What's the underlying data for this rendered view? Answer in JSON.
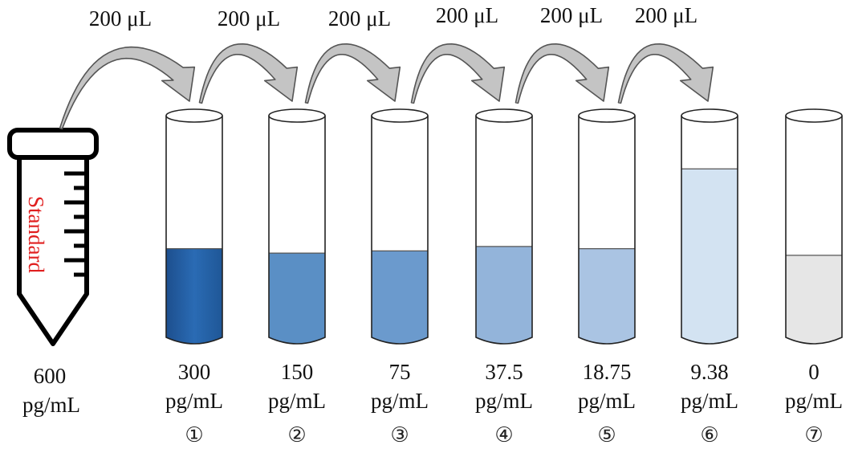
{
  "stock": {
    "tube_label": "Standard",
    "concentration": "600",
    "unit": "pg/mL",
    "label_color": "#e02020"
  },
  "transfer_volume": "200 μL",
  "arrows": [
    {
      "volume": "200 μL"
    },
    {
      "volume": "200 μL"
    },
    {
      "volume": "200 μL"
    },
    {
      "volume": "200 μL"
    },
    {
      "volume": "200 μL"
    },
    {
      "volume": "200 μL"
    }
  ],
  "tubes": [
    {
      "index": "①",
      "concentration": "300",
      "unit": "pg/mL",
      "liquid_color": "#2561a8",
      "fill_level": 0.4
    },
    {
      "index": "②",
      "concentration": "150",
      "unit": "pg/mL",
      "liquid_color": "#5a8fc5",
      "fill_level": 0.38
    },
    {
      "index": "③",
      "concentration": "75",
      "unit": "pg/mL",
      "liquid_color": "#6b9acd",
      "fill_level": 0.39
    },
    {
      "index": "④",
      "concentration": "37.5",
      "unit": "pg/mL",
      "liquid_color": "#93b4da",
      "fill_level": 0.41
    },
    {
      "index": "⑤",
      "concentration": "18.75",
      "unit": "pg/mL",
      "liquid_color": "#aac4e3",
      "fill_level": 0.4
    },
    {
      "index": "⑥",
      "concentration": "9.38",
      "unit": "pg/mL",
      "liquid_color": "#d3e3f2",
      "fill_level": 0.76
    },
    {
      "index": "⑦",
      "concentration": "0",
      "unit": "pg/mL",
      "liquid_color": "#e6e6e6",
      "fill_level": 0.37
    }
  ]
}
